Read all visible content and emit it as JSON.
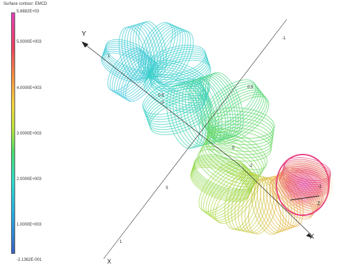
{
  "legend": {
    "title": "Surface contour: EMCD",
    "max_label": "5.8882E+03",
    "tick_labels": [
      "5.0000E+003",
      "4.0000E+003",
      "3.0000E+003",
      "2.0000E+003",
      "1.0000E+003"
    ],
    "min_label": "-2.1362E-001",
    "colors": [
      "#3b5fc0",
      "#28a8e0",
      "#2fd8c8",
      "#49d86a",
      "#b8e03c",
      "#f0d040",
      "#f08c40",
      "#e84060",
      "#e040b8"
    ]
  },
  "axes": {
    "y_label": "Y",
    "x_label": "X",
    "z_label": "Z",
    "tick_labels": [
      "1",
      "0.5",
      "-2",
      "0.5",
      "-1",
      "0",
      "-2",
      "0",
      "1",
      "2",
      "-1"
    ]
  }
}
